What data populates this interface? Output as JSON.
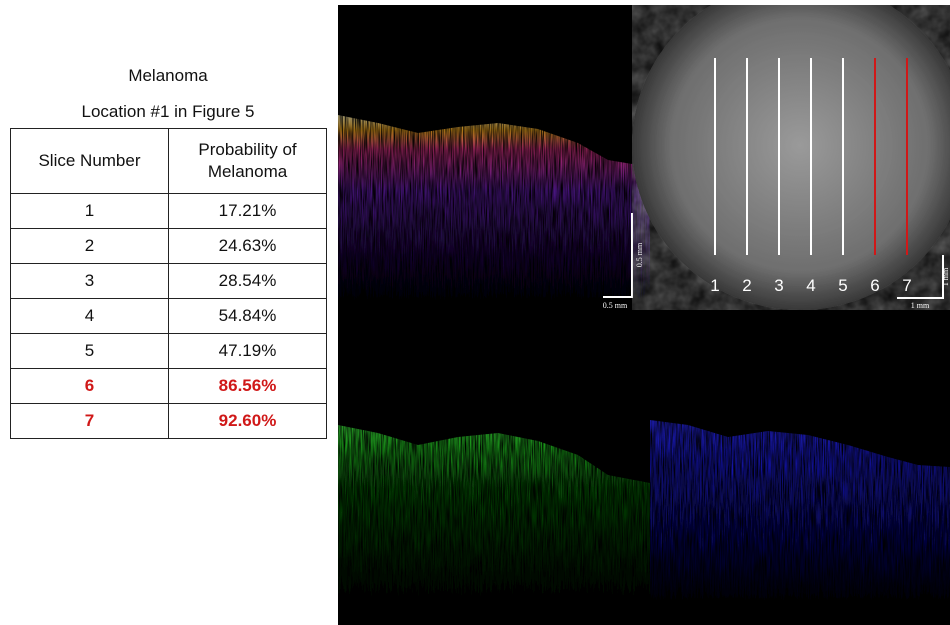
{
  "title": "Melanoma",
  "subtitle": "Location #1 in Figure 5",
  "table": {
    "header": [
      "Slice Number",
      "Probability of Melanoma"
    ],
    "rows": [
      [
        "1",
        "17.21%"
      ],
      [
        "2",
        "24.63%"
      ],
      [
        "3",
        "28.54%"
      ],
      [
        "4",
        "54.84%"
      ],
      [
        "5",
        "47.19%"
      ],
      [
        "6",
        "86.56%"
      ],
      [
        "7",
        "92.60%"
      ]
    ]
  },
  "images": {
    "oct_scale": {
      "vertical": "0.5 mm",
      "horizontal": "0.5 mm"
    },
    "photo_scale": {
      "vertical": "1 mm",
      "horizontal": "1 mm"
    },
    "slice_labels": [
      "1",
      "2",
      "3",
      "4",
      "5",
      "6",
      "7"
    ]
  }
}
